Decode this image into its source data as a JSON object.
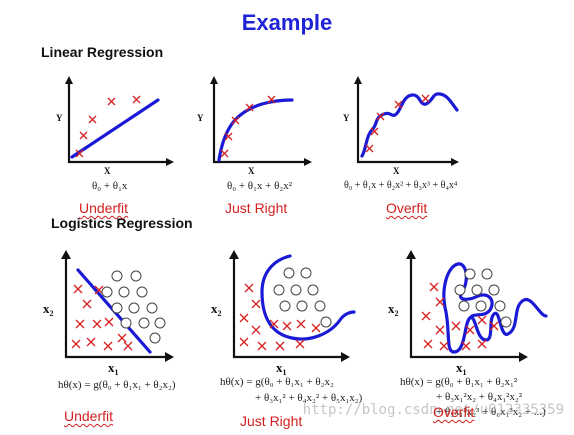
{
  "title": "Example",
  "sections": {
    "linear": "Linear Regression",
    "logistic": "Logistics Regression"
  },
  "labels": {
    "underfit": "Underfit",
    "just_right": "Just Right",
    "overfit": "Overfit"
  },
  "axes": {
    "x": "X",
    "y": "Y",
    "x1": "x",
    "x1_sub": "1",
    "x2": "x",
    "x2_sub": "2"
  },
  "formulas": {
    "linear_1": "θ₀ + θ₁x",
    "linear_2": "θ₀ + θ₁x + θ₂x²",
    "linear_3": "θ₀ + θ₁x + θ₂x² + θ₃x³ + θ₄x⁴",
    "logistic_1": "hθ(x) = g(θ₀ + θ₁x₁ + θ₂x₂)",
    "logistic_2_l1": "hθ(x) = g(θ₀ + θ₁x₁ + θ₂x₂",
    "logistic_2_l2": "+ θ₃x₁² + θ₄x₂² + θ₅x₁x₂)",
    "logistic_3_l1": "hθ(x) = g(θ₀ + θ₁x₁ + θ₂x₁²",
    "logistic_3_l2": "+ θ₃x₁²x₂ + θ₄x₁²x₂²",
    "logistic_3_l3": "+ θ₅x₁²x₂³ + θ₆x₁³x₂ + ...)"
  },
  "watermark": "http://blog.csdn.net/u012335359",
  "colors": {
    "title": "#1f23d6",
    "curve": "#1a1ad6",
    "label": "#d42020"
  }
}
